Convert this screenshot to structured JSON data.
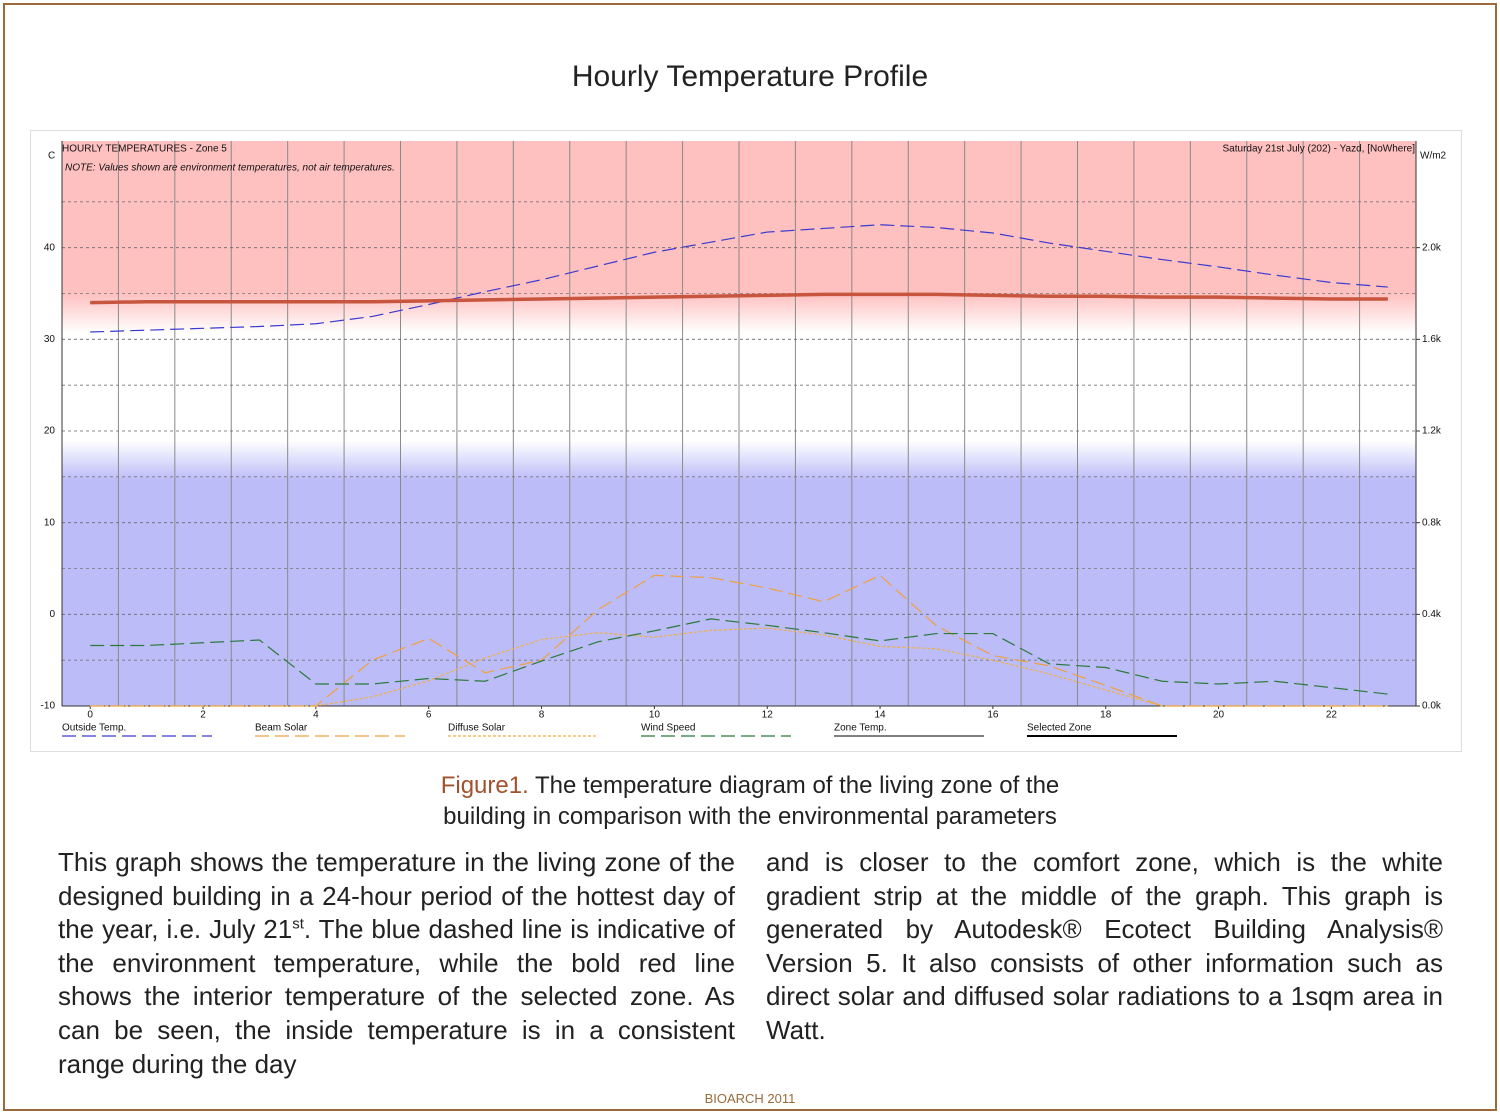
{
  "title": "Hourly Temperature Profile",
  "chart_data": {
    "type": "line",
    "title": "HOURLY TEMPERATURES - Zone 5",
    "subtitle": "Saturday 21st July (202) - Yazd, [NoWhere]",
    "note": "NOTE: Values shown are environment temperatures, not air temperatures.",
    "y_label": "C",
    "y2_label": "W/m2",
    "x": [
      0,
      1,
      2,
      3,
      4,
      5,
      6,
      7,
      8,
      9,
      10,
      11,
      12,
      13,
      14,
      15,
      16,
      17,
      18,
      19,
      20,
      21,
      22,
      23
    ],
    "xlim": [
      -0.5,
      23.5
    ],
    "xticks": [
      0,
      2,
      4,
      6,
      8,
      10,
      12,
      14,
      16,
      18,
      20,
      22
    ],
    "ylim": [
      -10,
      50
    ],
    "yticks": [
      -10,
      0,
      10,
      20,
      30,
      40
    ],
    "y2lim": [
      0,
      2400
    ],
    "y2ticks": [
      {
        "value": 0,
        "label": "0.0k"
      },
      {
        "value": 400,
        "label": "0.4k"
      },
      {
        "value": 800,
        "label": "0.8k"
      },
      {
        "value": 1200,
        "label": "1.2k"
      },
      {
        "value": 1600,
        "label": "1.6k"
      },
      {
        "value": 2000,
        "label": "2.0k"
      }
    ],
    "grid": true,
    "series": [
      {
        "name": "Outside Temp.",
        "color": "#3a3ad0",
        "style": "dashed",
        "values": [
          30.8,
          31.0,
          31.2,
          31.4,
          31.7,
          32.5,
          33.8,
          35.2,
          36.5,
          38.0,
          39.5,
          40.6,
          41.7,
          42.1,
          42.5,
          42.2,
          41.6,
          40.5,
          39.6,
          38.7,
          37.9,
          37.0,
          36.2,
          35.7
        ]
      },
      {
        "name": "Beam Solar",
        "color": "#f0a040",
        "style": "dashed",
        "axis": "y2",
        "values": [
          0,
          0,
          0,
          0,
          0,
          200,
          295,
          145,
          200,
          420,
          570,
          560,
          515,
          455,
          570,
          350,
          220,
          175,
          90,
          0,
          0,
          0,
          0,
          0
        ]
      },
      {
        "name": "Diffuse Solar",
        "color": "#f0b040",
        "style": "dotted",
        "axis": "y2",
        "values": [
          0,
          0,
          0,
          0,
          0,
          40,
          110,
          210,
          290,
          320,
          300,
          330,
          340,
          310,
          260,
          250,
          200,
          140,
          70,
          0,
          0,
          0,
          0,
          0
        ]
      },
      {
        "name": "Wind Speed",
        "color": "#2a7a3a",
        "style": "dashed",
        "values": [
          -3.4,
          -3.4,
          -3.1,
          -2.8,
          -7.6,
          -7.6,
          -7.0,
          -7.3,
          -5.1,
          -3.0,
          -1.8,
          -0.5,
          -1.2,
          -2.0,
          -2.9,
          -2.1,
          -2.1,
          -5.4,
          -5.8,
          -7.3,
          -7.6,
          -7.3,
          -8.0,
          -8.7
        ]
      },
      {
        "name": "Zone Temp.",
        "color": "#000000",
        "style": "solid",
        "values": [
          34.0,
          34.1,
          34.1,
          34.1,
          34.1,
          34.1,
          34.2,
          34.3,
          34.4,
          34.5,
          34.6,
          34.7,
          34.8,
          34.9,
          34.9,
          34.9,
          34.8,
          34.7,
          34.7,
          34.6,
          34.6,
          34.5,
          34.4,
          34.4
        ]
      },
      {
        "name": "Selected Zone",
        "color": "#c8553d",
        "style": "bold",
        "values": [
          34.0,
          34.1,
          34.1,
          34.1,
          34.1,
          34.1,
          34.2,
          34.3,
          34.4,
          34.5,
          34.6,
          34.7,
          34.8,
          34.9,
          34.9,
          34.9,
          34.8,
          34.7,
          34.7,
          34.6,
          34.6,
          34.5,
          34.4,
          34.4
        ]
      }
    ]
  },
  "caption": {
    "label": "Figure1.",
    "lines": [
      "The temperature diagram of the living zone of the",
      "building in comparison with the environmental parameters"
    ]
  },
  "paragraphs": [
    [
      "This graph shows the temperature in the living zone of the designed building in a 24-hour period of the hottest day of the year, i.e. July 21",
      "st",
      ". The blue dashed line is indicative of the environment temperature, while the bold red line shows the interior temperature of the selected zone. As can be seen, the inside temperature is in a consistent range during the day"
    ],
    [
      "and is closer to the comfort zone, which is the white gradient strip at the middle of the graph. This graph is generated by Autodesk® Ecotect Building Analysis® Version 5. It also consists of other information such as direct solar and diffused solar radiations to a 1sqm area in Watt."
    ]
  ],
  "footer": "BIOARCH 2011"
}
